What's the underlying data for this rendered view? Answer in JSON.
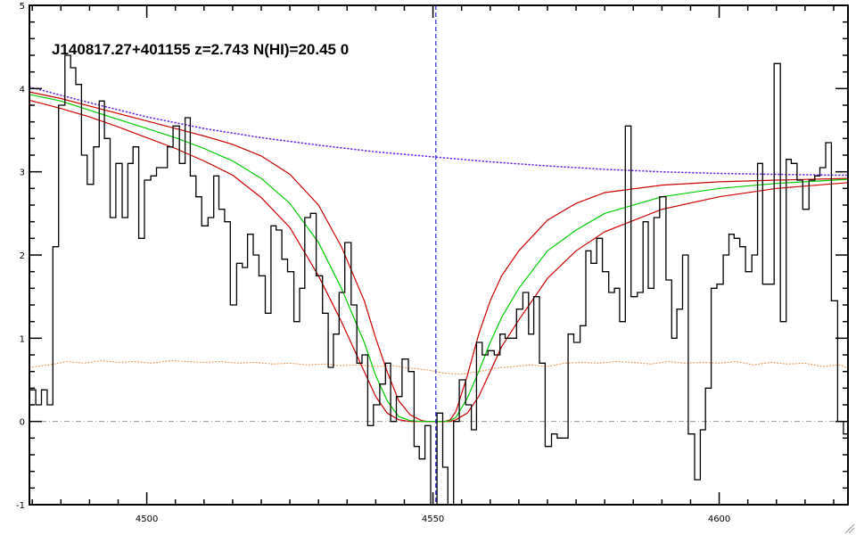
{
  "chart_data": {
    "type": "line",
    "title": "J140817.27+401155 z=2.743 N(HI)=20.45 0",
    "xlabel": "",
    "ylabel": "",
    "xlim": [
      4479.5,
      4622.5
    ],
    "ylim": [
      -1,
      5
    ],
    "x_ticks": [
      4500,
      4550,
      4600
    ],
    "y_ticks": [
      -1,
      0,
      1,
      2,
      3,
      4,
      5
    ],
    "grid": false,
    "reference_line_x": 4550.5,
    "reference_line_color": "#2222cc",
    "zero_line_y": 0,
    "colors": {
      "flux": "#000000",
      "best_fit": "#00cc00",
      "fit_bounds": "#cc0000",
      "continuum": "#6a2ce8",
      "error": "#e8a060",
      "zero_line": "#999999"
    },
    "series": [
      {
        "style": "step",
        "x": [
          4479.5,
          4480.6,
          4481.6,
          4482.6,
          4483.6,
          4484.6,
          4485.7,
          4486.7,
          4487.6,
          4488.6,
          4489.6,
          4490.7,
          4491.7,
          4492.6,
          4493.6,
          4494.6,
          4495.7,
          4496.7,
          4497.6,
          4498.6,
          4499.6,
          4500.7,
          4501.7,
          4502.6,
          4503.6,
          4504.6,
          4505.7,
          4506.7,
          4507.6,
          4508.6,
          4509.6,
          4510.7,
          4511.7,
          4512.6,
          4513.6,
          4514.6,
          4515.7,
          4516.7,
          4517.6,
          4518.6,
          4519.6,
          4520.7,
          4521.7,
          4522.6,
          4523.6,
          4524.6,
          4525.7,
          4526.7,
          4527.6,
          4528.6,
          4529.6,
          4530.7,
          4531.7,
          4532.6,
          4533.6,
          4534.6,
          4535.7,
          4536.7,
          4537.6,
          4538.6,
          4539.6,
          4540.7,
          4541.7,
          4542.6,
          4543.6,
          4544.6,
          4545.7,
          4546.7,
          4547.6,
          4548.6,
          4549.6,
          4550.7,
          4551.7,
          4552.6,
          4553.6,
          4554.6,
          4555.7,
          4556.7,
          4557.6,
          4558.6,
          4559.6,
          4560.7,
          4561.7,
          4562.6,
          4563.6,
          4564.6,
          4565.7,
          4566.7,
          4567.6,
          4568.6,
          4569.6,
          4570.7,
          4571.7,
          4572.6,
          4573.6,
          4574.6,
          4575.7,
          4576.7,
          4577.6,
          4578.6,
          4579.6,
          4580.7,
          4581.7,
          4582.6,
          4583.6,
          4584.6,
          4585.7,
          4586.7,
          4587.6,
          4588.6,
          4589.6,
          4590.7,
          4591.7,
          4592.6,
          4593.6,
          4594.6,
          4595.7,
          4596.7,
          4597.6,
          4598.6,
          4599.6,
          4600.7,
          4601.7,
          4602.6,
          4603.6,
          4604.6,
          4605.7,
          4606.7,
          4607.6,
          4608.6,
          4609.6,
          4610.7,
          4611.7,
          4612.6,
          4613.6,
          4614.6,
          4615.7,
          4616.7,
          4617.6,
          4618.6,
          4619.6,
          4620.7,
          4621.7
        ],
        "y": [
          0.38,
          0.2,
          0.38,
          0.2,
          2.1,
          3.8,
          4.4,
          4.25,
          4.05,
          3.2,
          2.85,
          3.3,
          3.85,
          3.4,
          2.45,
          3.1,
          2.45,
          3.1,
          3.3,
          2.2,
          2.9,
          2.95,
          3.05,
          3.05,
          3.3,
          3.55,
          3.1,
          3.65,
          2.95,
          2.7,
          2.35,
          2.45,
          2.95,
          2.55,
          2.4,
          1.4,
          1.9,
          1.85,
          2.25,
          2.0,
          1.75,
          1.3,
          2.35,
          2.3,
          1.95,
          1.8,
          1.2,
          1.6,
          2.45,
          2.5,
          1.75,
          1.3,
          0.65,
          1.05,
          1.55,
          2.15,
          1.4,
          0.7,
          0.8,
          -0.05,
          0.2,
          0.45,
          0.7,
          0.0,
          0.3,
          0.75,
          0.6,
          -0.3,
          -0.45,
          -0.05,
          -1.2,
          0.1,
          -0.55,
          -1.45,
          0.0,
          0.5,
          0.2,
          -0.1,
          0.95,
          0.8,
          0.85,
          0.8,
          1.05,
          1.0,
          1.0,
          1.35,
          1.55,
          1.05,
          1.5,
          0.7,
          -0.3,
          -0.15,
          -0.2,
          -0.2,
          1.05,
          0.95,
          1.15,
          2.05,
          1.9,
          2.2,
          1.8,
          1.55,
          1.6,
          1.2,
          3.55,
          1.5,
          1.55,
          2.4,
          1.6,
          2.45,
          2.7,
          1.7,
          1.0,
          1.35,
          2.0,
          -0.15,
          -0.7,
          -0.1,
          0.4,
          1.6,
          1.65,
          2.0,
          2.25,
          2.2,
          2.1,
          1.8,
          2.0,
          3.1,
          1.65,
          1.65,
          4.3,
          1.2,
          3.15,
          3.1,
          2.9,
          2.55,
          2.9,
          2.95,
          3.05,
          3.35,
          1.45,
          0.0,
          -0.15
        ]
      },
      {
        "style": "line",
        "x": [
          4479.5,
          4485,
          4490,
          4495,
          4500,
          4505,
          4510,
          4515,
          4520,
          4525,
          4530,
          4534,
          4538,
          4540,
          4542,
          4544,
          4546,
          4548,
          4549,
          4552,
          4553,
          4554,
          4556,
          4558,
          4560,
          4562,
          4565,
          4570,
          4575,
          4580,
          4590,
          4600,
          4610,
          4622.5
        ],
        "y": [
          3.93,
          3.85,
          3.74,
          3.63,
          3.52,
          3.41,
          3.28,
          3.13,
          2.92,
          2.62,
          2.15,
          1.6,
          0.95,
          0.55,
          0.25,
          0.06,
          0.01,
          0.0,
          0.0,
          0.0,
          0.01,
          0.05,
          0.28,
          0.6,
          0.95,
          1.25,
          1.6,
          2.05,
          2.3,
          2.5,
          2.7,
          2.8,
          2.86,
          2.91
        ]
      },
      {
        "style": "line",
        "x": [
          4479.5,
          4485,
          4490,
          4495,
          4500,
          4505,
          4510,
          4515,
          4520,
          4525,
          4530,
          4534,
          4538,
          4540,
          4542,
          4544,
          4546,
          4548,
          4549,
          4552,
          4553,
          4554,
          4556,
          4558,
          4560,
          4562,
          4565,
          4570,
          4575,
          4580,
          4590,
          4600,
          4610,
          4622.5
        ],
        "y": [
          3.96,
          3.88,
          3.79,
          3.7,
          3.61,
          3.52,
          3.43,
          3.33,
          3.19,
          2.97,
          2.6,
          2.1,
          1.45,
          1.0,
          0.6,
          0.25,
          0.08,
          0.01,
          0.0,
          0.0,
          0.02,
          0.12,
          0.55,
          1.05,
          1.45,
          1.75,
          2.05,
          2.42,
          2.62,
          2.75,
          2.84,
          2.88,
          2.9,
          2.92
        ]
      },
      {
        "style": "line",
        "x": [
          4479.5,
          4485,
          4490,
          4495,
          4500,
          4505,
          4510,
          4515,
          4520,
          4525,
          4530,
          4534,
          4538,
          4540,
          4542,
          4544,
          4546,
          4548,
          4549,
          4552,
          4553,
          4554,
          4556,
          4558,
          4560,
          4562,
          4565,
          4570,
          4575,
          4580,
          4590,
          4600,
          4610,
          4622.5
        ],
        "y": [
          3.86,
          3.76,
          3.66,
          3.54,
          3.41,
          3.28,
          3.13,
          2.96,
          2.69,
          2.33,
          1.75,
          1.2,
          0.6,
          0.3,
          0.1,
          0.02,
          0.0,
          0.0,
          0.0,
          0.0,
          0.0,
          0.02,
          0.1,
          0.3,
          0.6,
          0.9,
          1.22,
          1.72,
          2.05,
          2.28,
          2.55,
          2.7,
          2.8,
          2.87
        ]
      },
      {
        "style": "dotted",
        "x": [
          4479.5,
          4490,
          4500,
          4510,
          4520,
          4530,
          4540,
          4550,
          4560,
          4570,
          4580,
          4590,
          4600,
          4610,
          4620,
          4622.5
        ],
        "y": [
          4.02,
          3.83,
          3.66,
          3.52,
          3.41,
          3.32,
          3.24,
          3.18,
          3.12,
          3.07,
          3.03,
          3.0,
          2.98,
          2.97,
          2.96,
          2.96
        ]
      },
      {
        "style": "dotted",
        "x": [
          4479.5,
          4483,
          4486,
          4489,
          4492,
          4495,
          4498,
          4501,
          4504,
          4507,
          4510,
          4513,
          4516,
          4519,
          4522,
          4525,
          4528,
          4531,
          4534,
          4537,
          4540,
          4543,
          4546,
          4549,
          4552,
          4555,
          4558,
          4561,
          4564,
          4567,
          4570,
          4573,
          4576,
          4579,
          4582,
          4585,
          4588,
          4591,
          4594,
          4597,
          4600,
          4603,
          4606,
          4609,
          4612,
          4615,
          4618,
          4621,
          4622.5
        ],
        "y": [
          0.65,
          0.68,
          0.72,
          0.7,
          0.73,
          0.71,
          0.72,
          0.7,
          0.73,
          0.72,
          0.71,
          0.72,
          0.7,
          0.71,
          0.69,
          0.7,
          0.68,
          0.69,
          0.67,
          0.68,
          0.66,
          0.67,
          0.64,
          0.62,
          0.58,
          0.57,
          0.6,
          0.64,
          0.66,
          0.68,
          0.66,
          0.7,
          0.71,
          0.7,
          0.72,
          0.71,
          0.69,
          0.72,
          0.7,
          0.71,
          0.7,
          0.72,
          0.68,
          0.71,
          0.69,
          0.7,
          0.66,
          0.68,
          0.64
        ]
      }
    ]
  }
}
